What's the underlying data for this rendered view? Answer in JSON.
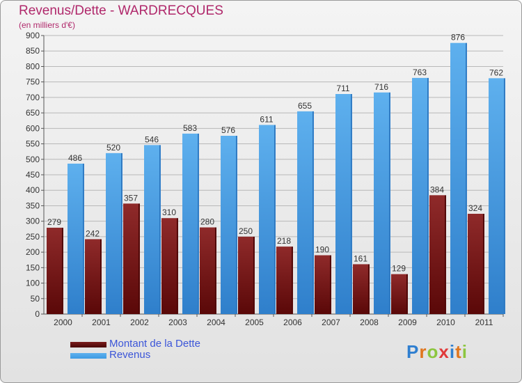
{
  "chart_data": {
    "type": "bar",
    "title": "Revenus/Dette - WARDRECQUES",
    "subtitle": "(en milliers d'€)",
    "categories": [
      "2000",
      "2001",
      "2002",
      "2003",
      "2004",
      "2005",
      "2006",
      "2007",
      "2008",
      "2009",
      "2010",
      "2011"
    ],
    "series": [
      {
        "name": "Montant de la Dette",
        "color": "#7a1c1c",
        "values": [
          279,
          242,
          357,
          310,
          280,
          250,
          218,
          190,
          161,
          129,
          384,
          324
        ]
      },
      {
        "name": "Revenus",
        "color": "#3d9be3",
        "values": [
          486,
          520,
          546,
          583,
          576,
          611,
          655,
          711,
          716,
          763,
          876,
          762
        ]
      }
    ],
    "ylim": [
      0,
      900
    ],
    "yticks": [
      0,
      50,
      100,
      150,
      200,
      250,
      300,
      350,
      400,
      450,
      500,
      550,
      600,
      650,
      700,
      750,
      800,
      850,
      900
    ],
    "grid": true,
    "legend": "bottom-left"
  },
  "logo": {
    "letters": [
      "P",
      "r",
      "o",
      "x",
      "i",
      "t",
      "i"
    ]
  }
}
